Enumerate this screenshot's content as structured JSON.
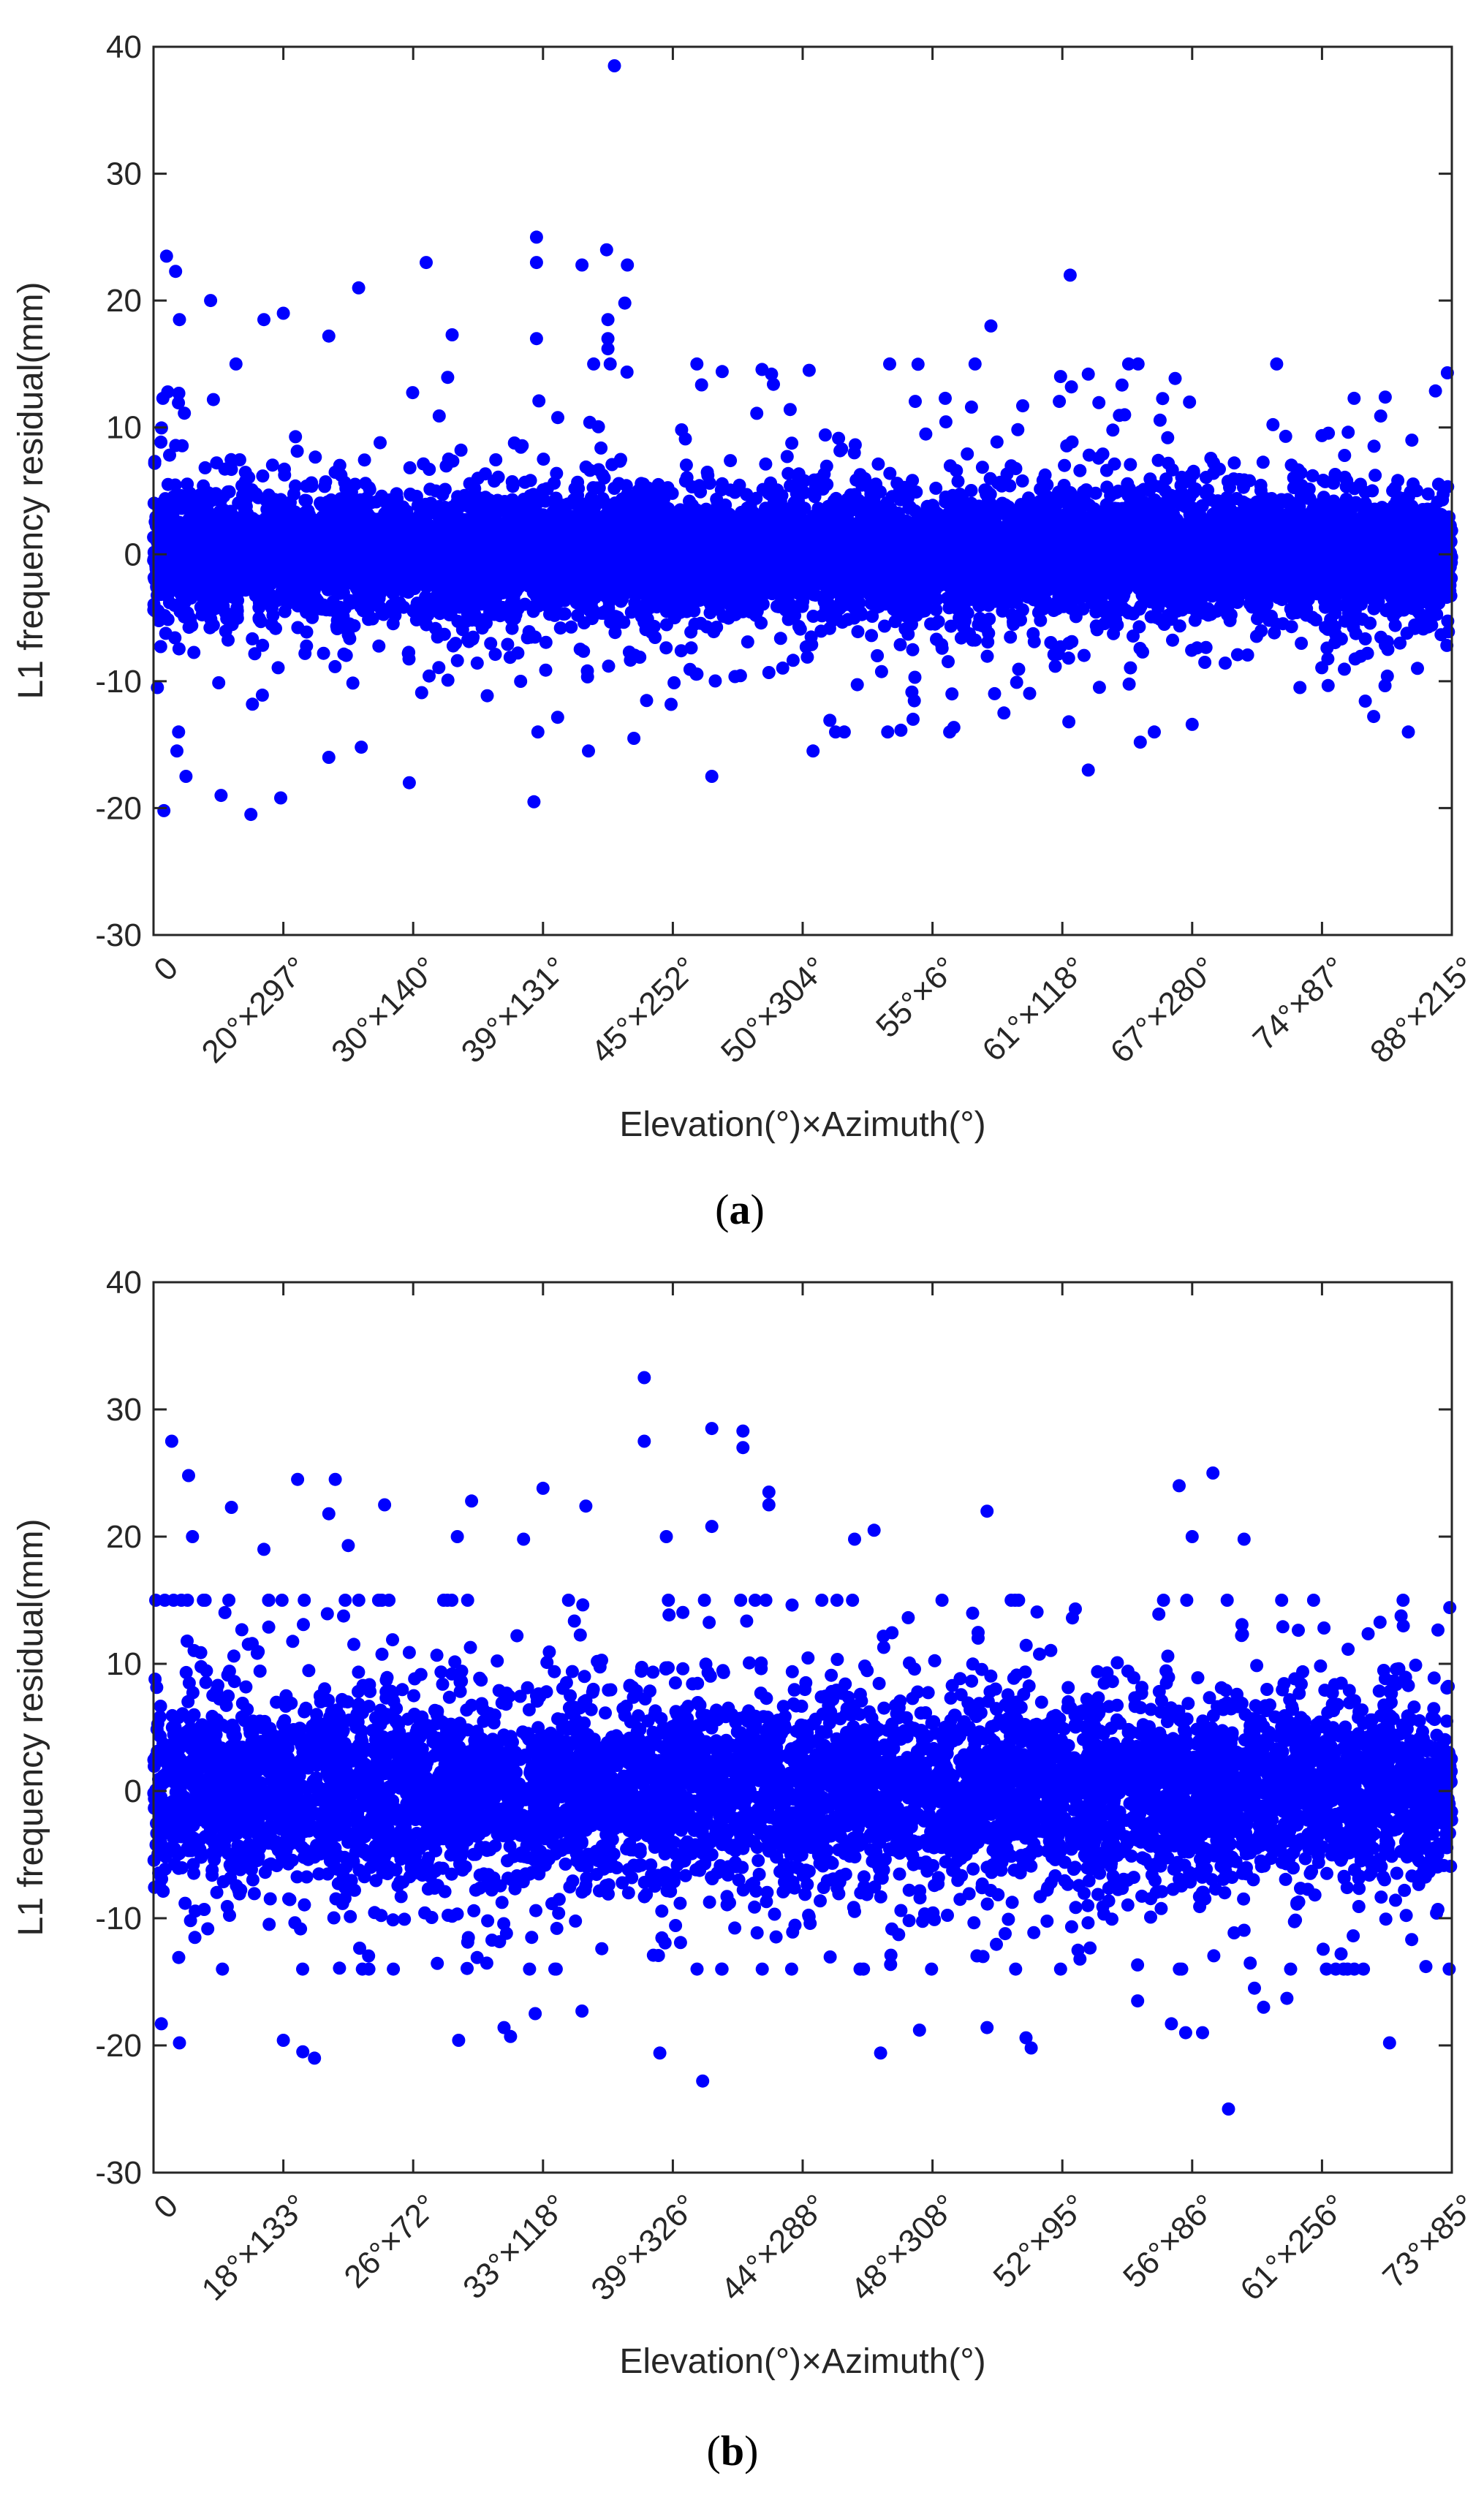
{
  "chart_data": [
    {
      "type": "scatter",
      "panel_caption": "a",
      "xlabel": "Elevation(°)×Azimuth(°)",
      "ylabel": "L1 frequency residual(mm)",
      "ylim": [
        -30,
        40
      ],
      "yticks": [
        -30,
        -20,
        -10,
        0,
        10,
        20,
        30,
        40
      ],
      "xticklabels": [
        "0",
        "20°×297°",
        "30°×140°",
        "39°×131°",
        "45°×252°",
        "50°×304°",
        "55°×6°",
        "61°×118°",
        "67°×280°",
        "74°×87°",
        "88°×215°"
      ],
      "marker_color": "#0000ff",
      "n_points": 9000,
      "core_band_std_mm": 2.3,
      "outliers": [
        {
          "x": 0.355,
          "y": 38.5
        },
        {
          "x": 0.295,
          "y": 25.0
        },
        {
          "x": 0.349,
          "y": 24.0
        },
        {
          "x": 0.01,
          "y": 23.5
        },
        {
          "x": 0.21,
          "y": 23.0
        },
        {
          "x": 0.295,
          "y": 23.0
        },
        {
          "x": 0.33,
          "y": 22.8
        },
        {
          "x": 0.365,
          "y": 22.8
        },
        {
          "x": 0.017,
          "y": 22.3
        },
        {
          "x": 0.706,
          "y": 22.0
        },
        {
          "x": 0.158,
          "y": 21.0
        },
        {
          "x": 0.044,
          "y": 20.0
        },
        {
          "x": 0.363,
          "y": 19.8
        },
        {
          "x": 0.1,
          "y": 19.0
        },
        {
          "x": 0.085,
          "y": 18.5
        },
        {
          "x": 0.02,
          "y": 18.5
        },
        {
          "x": 0.645,
          "y": 18.0
        },
        {
          "x": 0.35,
          "y": 18.5
        },
        {
          "x": 0.35,
          "y": 17.0
        },
        {
          "x": 0.295,
          "y": 17.0
        },
        {
          "x": 0.23,
          "y": 17.3
        },
        {
          "x": 0.135,
          "y": 17.2
        },
        {
          "x": 0.35,
          "y": 16.2
        },
        {
          "x": 0.011,
          "y": 12.8
        },
        {
          "x": 0.707,
          "y": 13.2
        },
        {
          "x": 0.72,
          "y": 14.2
        },
        {
          "x": 0.505,
          "y": 14.5
        },
        {
          "x": 0.476,
          "y": 14.2
        },
        {
          "x": 0.438,
          "y": 14.4
        },
        {
          "x": 0.63,
          "y": 11.6
        },
        {
          "x": 0.798,
          "y": 12.0
        },
        {
          "x": 0.748,
          "y": 11.0
        },
        {
          "x": 0.872,
          "y": 9.3
        },
        {
          "x": 0.008,
          "y": -20.2
        },
        {
          "x": 0.075,
          "y": -20.5
        },
        {
          "x": 0.293,
          "y": -19.5
        },
        {
          "x": 0.052,
          "y": -19.0
        },
        {
          "x": 0.098,
          "y": -19.2
        },
        {
          "x": 0.197,
          "y": -18.0
        },
        {
          "x": 0.025,
          "y": -17.5
        },
        {
          "x": 0.43,
          "y": -17.5
        },
        {
          "x": 0.72,
          "y": -17.0
        },
        {
          "x": 0.018,
          "y": -15.5
        },
        {
          "x": 0.508,
          "y": -15.5
        },
        {
          "x": 0.335,
          "y": -15.5
        },
        {
          "x": 0.135,
          "y": -16.0
        },
        {
          "x": 0.16,
          "y": -15.2
        },
        {
          "x": 0.37,
          "y": -14.5
        },
        {
          "x": 0.585,
          "y": -13.0
        },
        {
          "x": 0.705,
          "y": -13.2
        },
        {
          "x": 0.8,
          "y": -13.4
        },
        {
          "x": 0.76,
          "y": -14.8
        },
        {
          "x": 0.655,
          "y": -12.5
        },
        {
          "x": 0.615,
          "y": -11.0
        },
        {
          "x": 0.003,
          "y": -10.5
        },
        {
          "x": 0.883,
          "y": -10.5
        },
        {
          "x": 0.935,
          "y": -7.8
        }
      ]
    },
    {
      "type": "scatter",
      "panel_caption": "b",
      "xlabel": "Elevation(°)×Azimuth(°)",
      "ylabel": "L1 frequency residual(mm)",
      "ylim": [
        -30,
        40
      ],
      "yticks": [
        -30,
        -20,
        -10,
        0,
        10,
        20,
        30,
        40
      ],
      "xticklabels": [
        "0",
        "18°×133°",
        "26°×72°",
        "33°×118°",
        "39°×326°",
        "44°×288°",
        "48°×308°",
        "52°×95°",
        "56°×86°",
        "61°×256°",
        "73°×85°"
      ],
      "marker_color": "#0000ff",
      "n_points": 6500,
      "core_band_std_mm": 3.6,
      "outliers": [
        {
          "x": 0.378,
          "y": 32.5
        },
        {
          "x": 0.43,
          "y": 28.5
        },
        {
          "x": 0.454,
          "y": 28.3
        },
        {
          "x": 0.454,
          "y": 27.0
        },
        {
          "x": 0.014,
          "y": 27.5
        },
        {
          "x": 0.378,
          "y": 27.5
        },
        {
          "x": 0.816,
          "y": 25.0
        },
        {
          "x": 0.027,
          "y": 24.8
        },
        {
          "x": 0.111,
          "y": 24.5
        },
        {
          "x": 0.14,
          "y": 24.5
        },
        {
          "x": 0.79,
          "y": 24.0
        },
        {
          "x": 0.3,
          "y": 23.8
        },
        {
          "x": 0.474,
          "y": 23.5
        },
        {
          "x": 0.245,
          "y": 22.8
        },
        {
          "x": 0.178,
          "y": 22.5
        },
        {
          "x": 0.333,
          "y": 22.4
        },
        {
          "x": 0.474,
          "y": 22.5
        },
        {
          "x": 0.06,
          "y": 22.3
        },
        {
          "x": 0.642,
          "y": 22.0
        },
        {
          "x": 0.135,
          "y": 21.8
        },
        {
          "x": 0.43,
          "y": 20.8
        },
        {
          "x": 0.555,
          "y": 20.5
        },
        {
          "x": 0.03,
          "y": 20.0
        },
        {
          "x": 0.395,
          "y": 20.0
        },
        {
          "x": 0.234,
          "y": 20.0
        },
        {
          "x": 0.8,
          "y": 20.0
        },
        {
          "x": 0.84,
          "y": 19.8
        },
        {
          "x": 0.285,
          "y": 19.8
        },
        {
          "x": 0.54,
          "y": 19.8
        },
        {
          "x": 0.085,
          "y": 19.0
        },
        {
          "x": 0.15,
          "y": 19.3
        },
        {
          "x": 0.006,
          "y": -18.3
        },
        {
          "x": 0.02,
          "y": -19.8
        },
        {
          "x": 0.1,
          "y": -19.6
        },
        {
          "x": 0.115,
          "y": -20.5
        },
        {
          "x": 0.124,
          "y": -21.0
        },
        {
          "x": 0.235,
          "y": -19.6
        },
        {
          "x": 0.27,
          "y": -18.6
        },
        {
          "x": 0.275,
          "y": -19.3
        },
        {
          "x": 0.294,
          "y": -17.5
        },
        {
          "x": 0.39,
          "y": -20.6
        },
        {
          "x": 0.423,
          "y": -22.8
        },
        {
          "x": 0.56,
          "y": -20.6
        },
        {
          "x": 0.59,
          "y": -18.8
        },
        {
          "x": 0.642,
          "y": -18.6
        },
        {
          "x": 0.672,
          "y": -19.4
        },
        {
          "x": 0.676,
          "y": -20.2
        },
        {
          "x": 0.784,
          "y": -18.3
        },
        {
          "x": 0.795,
          "y": -19.0
        },
        {
          "x": 0.808,
          "y": -19.0
        },
        {
          "x": 0.855,
          "y": -17.0
        },
        {
          "x": 0.873,
          "y": -16.3
        },
        {
          "x": 0.848,
          "y": -15.5
        },
        {
          "x": 0.828,
          "y": -25.0
        },
        {
          "x": 0.952,
          "y": -19.8
        },
        {
          "x": 0.758,
          "y": -16.5
        },
        {
          "x": 0.33,
          "y": -17.3
        },
        {
          "x": 0.98,
          "y": -13.8
        }
      ]
    }
  ]
}
